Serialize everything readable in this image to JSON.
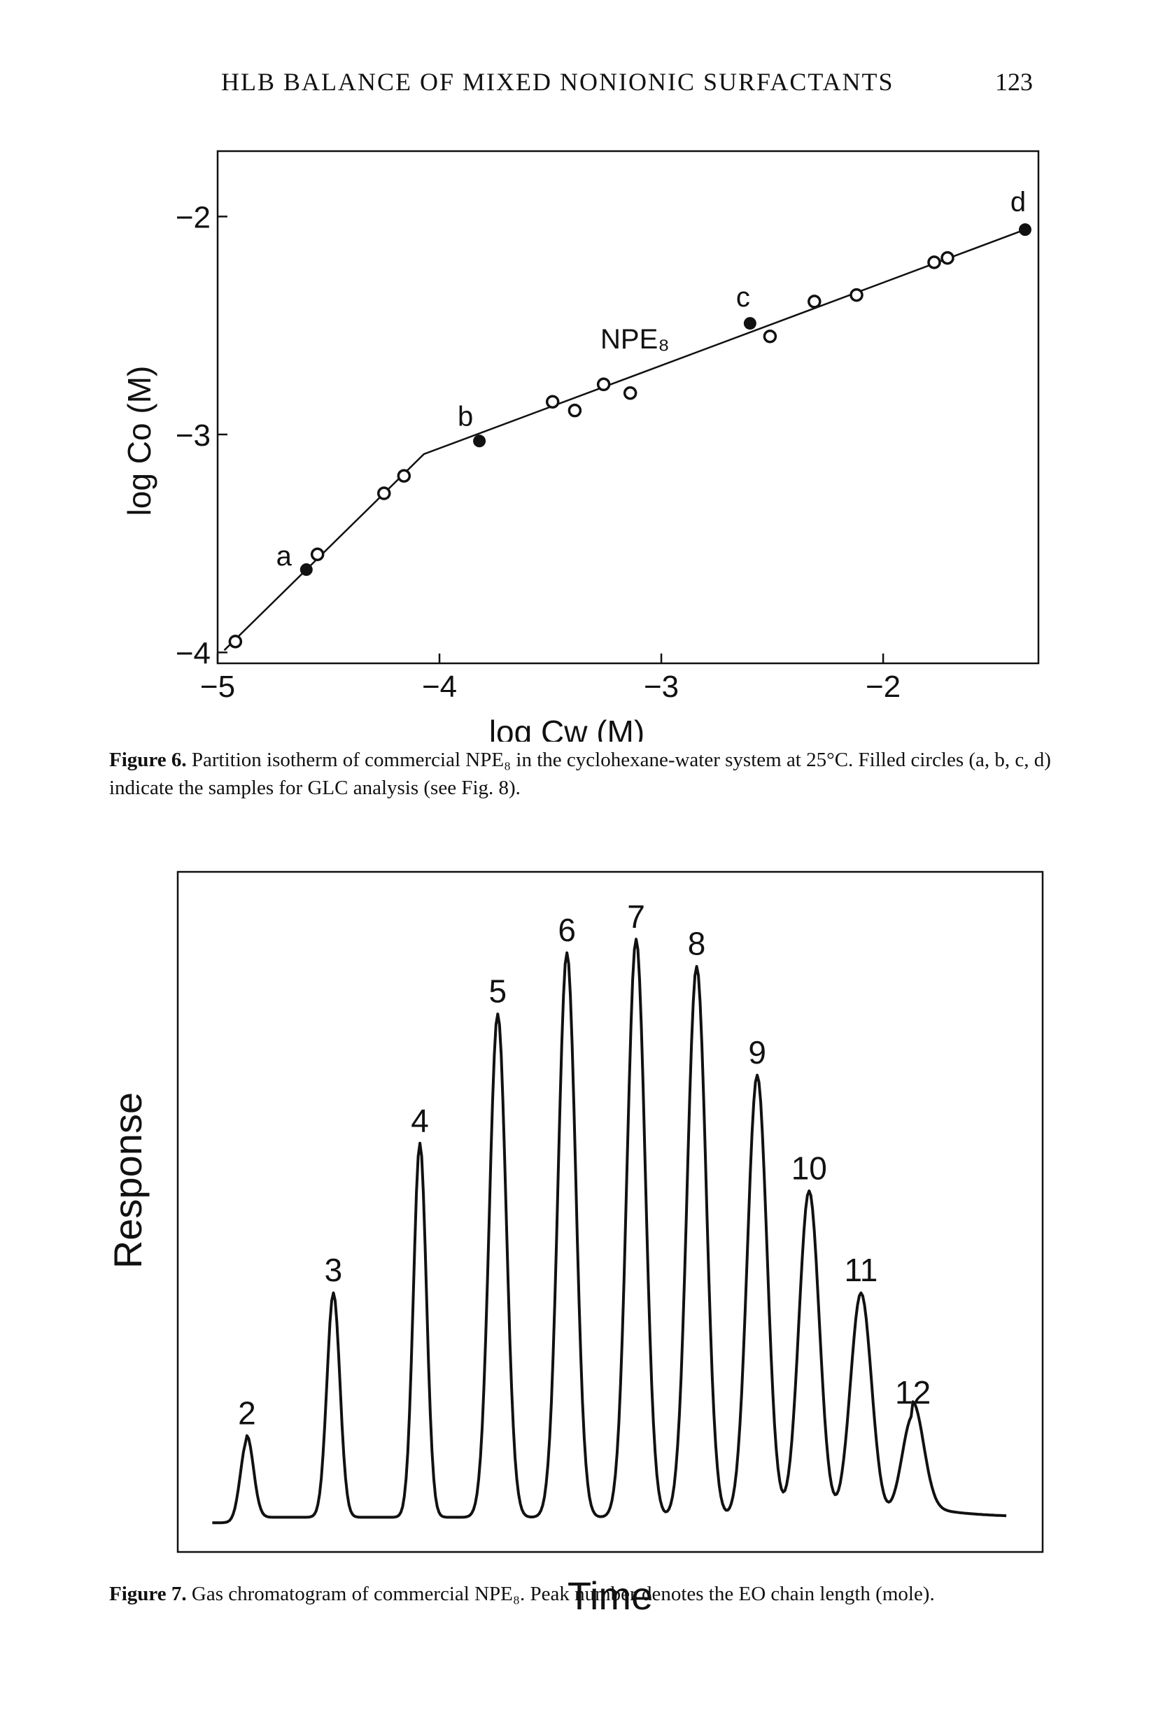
{
  "header": {
    "running_title": "HLB BALANCE OF MIXED NONIONIC SURFACTANTS",
    "page_number": "123"
  },
  "figure6": {
    "caption_label": "Figure 6.",
    "caption_text": "Partition isotherm of commercial NPE₈ in the cyclohexane-water system at 25°C. Filled circles (a, b, c, d) indicate the samples for GLC analysis (see Fig. 8).",
    "chart_data": {
      "type": "scatter",
      "xlabel": "log Cw (M)",
      "ylabel": "log Co (M)",
      "xlim": [
        -5,
        -1.3
      ],
      "ylim": [
        -4.05,
        -1.7
      ],
      "xticks": [
        "-5",
        "-4",
        "-3",
        "-2"
      ],
      "yticks": [
        "-2",
        "-3",
        "-4"
      ],
      "series_label": "NPE₈",
      "open_points": [
        {
          "x": -4.92,
          "y": -3.95
        },
        {
          "x": -4.55,
          "y": -3.55
        },
        {
          "x": -4.25,
          "y": -3.27
        },
        {
          "x": -4.16,
          "y": -3.19
        },
        {
          "x": -3.49,
          "y": -2.85
        },
        {
          "x": -3.39,
          "y": -2.89
        },
        {
          "x": -3.26,
          "y": -2.77
        },
        {
          "x": -3.14,
          "y": -2.81
        },
        {
          "x": -2.51,
          "y": -2.55
        },
        {
          "x": -2.31,
          "y": -2.39
        },
        {
          "x": -2.12,
          "y": -2.36
        },
        {
          "x": -1.77,
          "y": -2.21
        },
        {
          "x": -1.71,
          "y": -2.19
        }
      ],
      "filled_points": [
        {
          "label": "a",
          "x": -4.6,
          "y": -3.62
        },
        {
          "label": "b",
          "x": -3.82,
          "y": -3.03
        },
        {
          "label": "c",
          "x": -2.6,
          "y": -2.49
        },
        {
          "label": "d",
          "x": -1.36,
          "y": -2.06
        }
      ],
      "fit_line": [
        {
          "x": -4.97,
          "y": -3.99
        },
        {
          "x": -4.07,
          "y": -3.09
        },
        {
          "x": -1.36,
          "y": -2.06
        }
      ]
    }
  },
  "figure7": {
    "caption_label": "Figure 7.",
    "caption_text": "Gas chromatogram of commercial NPE₈. Peak number denotes the EO chain length (mole).",
    "chart_data": {
      "type": "line",
      "xlabel": "Time",
      "ylabel": "Response",
      "peaks": [
        {
          "label": "2",
          "time": 0.08,
          "response": 0.12
        },
        {
          "label": "3",
          "time": 0.18,
          "response": 0.33
        },
        {
          "label": "4",
          "time": 0.28,
          "response": 0.55
        },
        {
          "label": "5",
          "time": 0.37,
          "response": 0.74
        },
        {
          "label": "6",
          "time": 0.45,
          "response": 0.83
        },
        {
          "label": "7",
          "time": 0.53,
          "response": 0.85
        },
        {
          "label": "8",
          "time": 0.6,
          "response": 0.81
        },
        {
          "label": "9",
          "time": 0.67,
          "response": 0.65
        },
        {
          "label": "10",
          "time": 0.73,
          "response": 0.48
        },
        {
          "label": "11",
          "time": 0.79,
          "response": 0.33
        },
        {
          "label": "12",
          "time": 0.85,
          "response": 0.15
        }
      ]
    }
  }
}
